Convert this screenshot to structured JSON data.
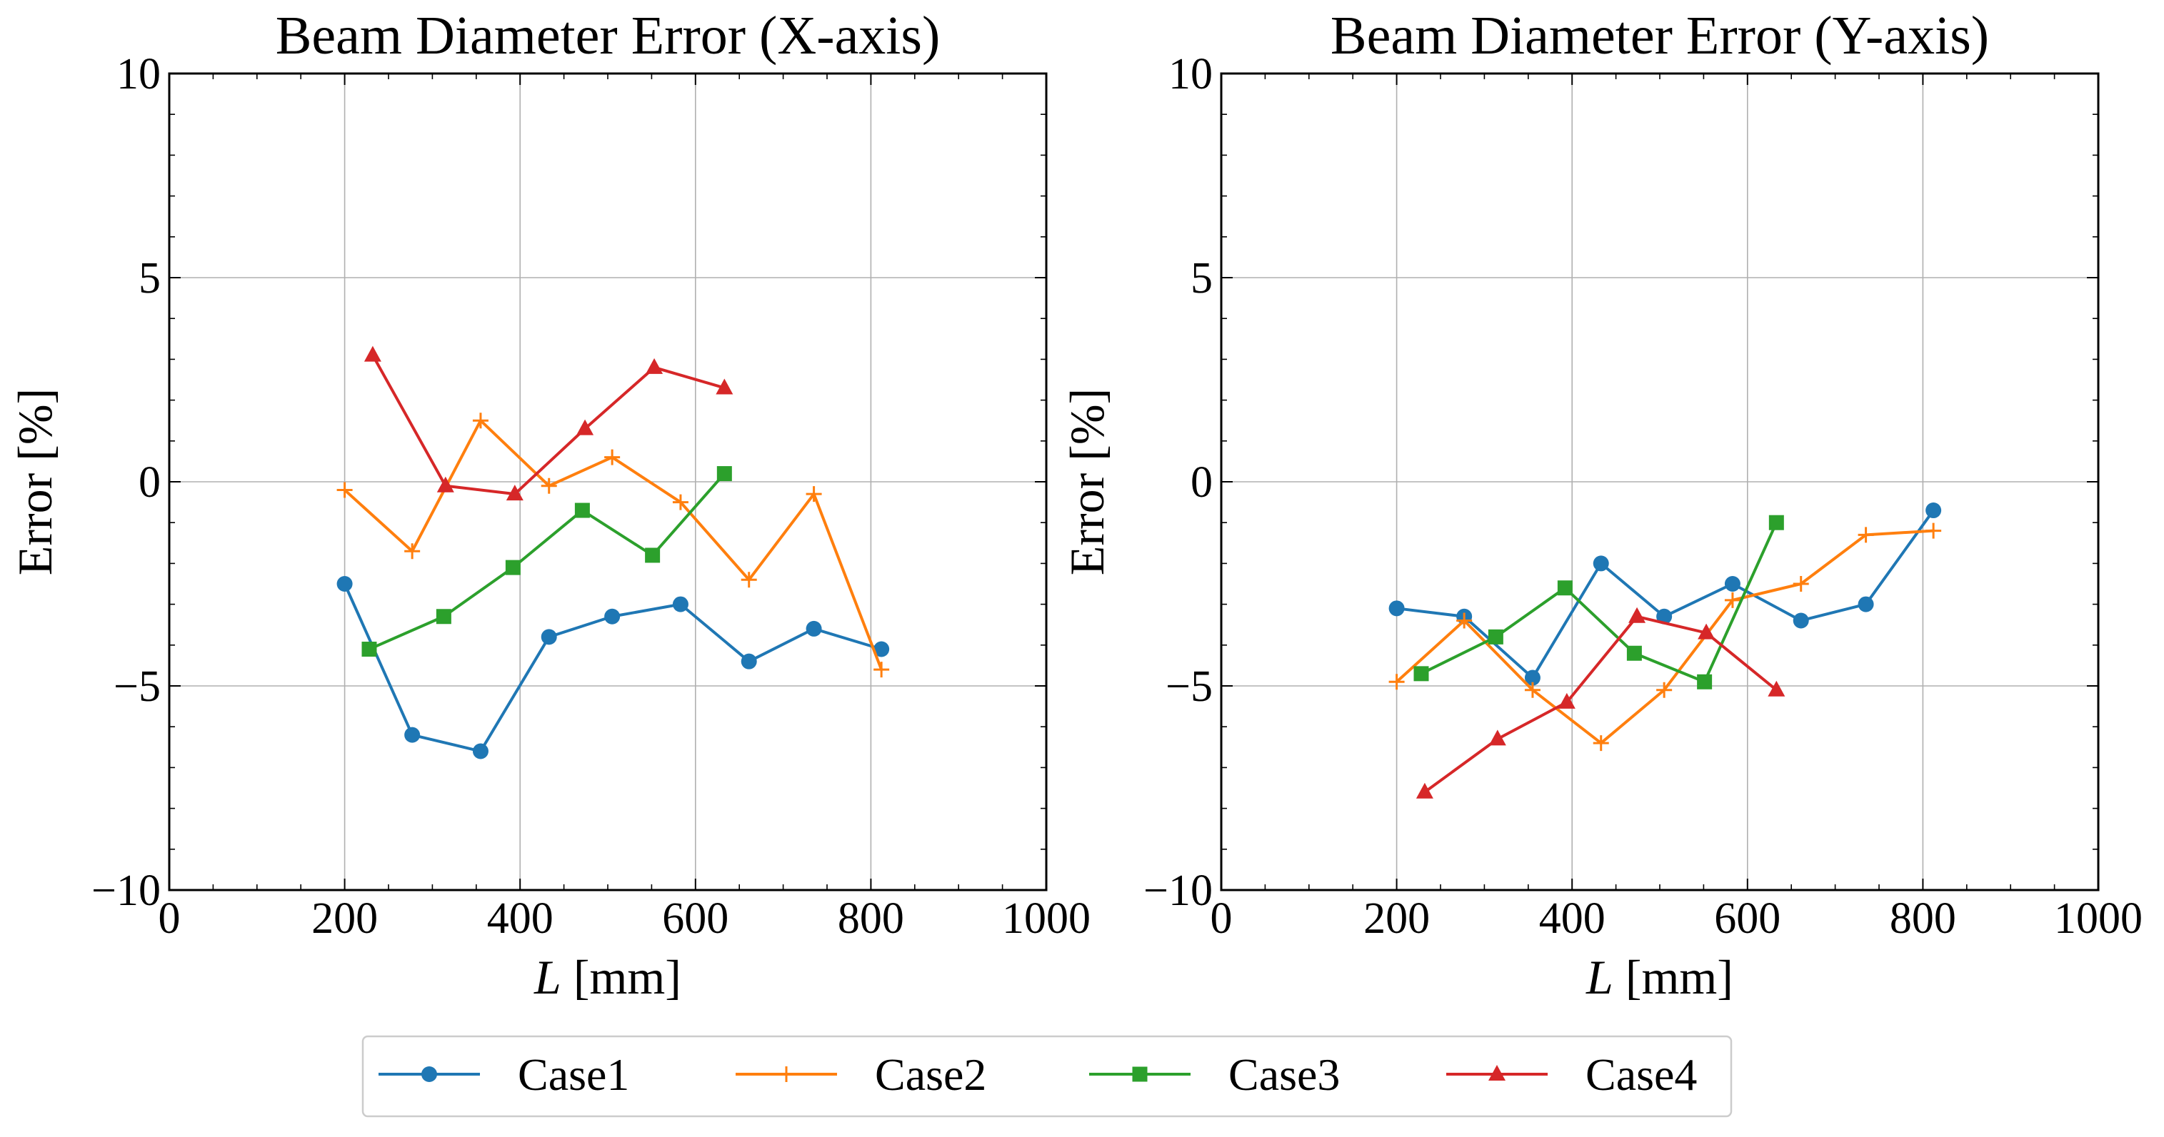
{
  "chart_data": [
    {
      "type": "line",
      "title": "Beam Diameter Error (X-axis)",
      "xlabel_var": "L",
      "xlabel_unit": " [mm]",
      "ylabel": "Error [%]",
      "xlim": [
        0,
        1000
      ],
      "ylim": [
        -10,
        10
      ],
      "xticks": [
        0,
        200,
        400,
        600,
        800,
        1000
      ],
      "yticks": [
        -10,
        -5,
        0,
        5,
        10
      ],
      "xtick_labels": [
        "0",
        "200",
        "400",
        "600",
        "800",
        "1000"
      ],
      "ytick_labels": [
        "−10",
        "−5",
        "0",
        "5",
        "10"
      ],
      "grid": true,
      "series": [
        {
          "name": "Case1",
          "color": "#1f77b4",
          "marker": "circle",
          "x": [
            200,
            277,
            355,
            433,
            505,
            583,
            661,
            735,
            812
          ],
          "y": [
            -2.5,
            -6.2,
            -6.6,
            -3.8,
            -3.3,
            -3.0,
            -4.4,
            -3.6,
            -4.1
          ]
        },
        {
          "name": "Case2",
          "color": "#ff7f0e",
          "marker": "plus",
          "x": [
            200,
            277,
            355,
            433,
            505,
            583,
            661,
            735,
            812
          ],
          "y": [
            -0.2,
            -1.7,
            1.5,
            -0.1,
            0.6,
            -0.5,
            -2.4,
            -0.3,
            -4.6
          ]
        },
        {
          "name": "Case3",
          "color": "#2ca02c",
          "marker": "square",
          "x": [
            228,
            313,
            392,
            471,
            551,
            633
          ],
          "y": [
            -4.1,
            -3.3,
            -2.1,
            -0.7,
            -1.8,
            0.2
          ]
        },
        {
          "name": "Case4",
          "color": "#d62728",
          "marker": "triangle",
          "x": [
            232,
            315,
            394,
            474,
            553,
            633
          ],
          "y": [
            3.1,
            -0.1,
            -0.3,
            1.3,
            2.8,
            2.3
          ]
        }
      ]
    },
    {
      "type": "line",
      "title": "Beam Diameter Error (Y-axis)",
      "xlabel_var": "L",
      "xlabel_unit": " [mm]",
      "ylabel": "Error [%]",
      "xlim": [
        0,
        1000
      ],
      "ylim": [
        -10,
        10
      ],
      "xticks": [
        0,
        200,
        400,
        600,
        800,
        1000
      ],
      "yticks": [
        -10,
        -5,
        0,
        5,
        10
      ],
      "xtick_labels": [
        "0",
        "200",
        "400",
        "600",
        "800",
        "1000"
      ],
      "ytick_labels": [
        "−10",
        "−5",
        "0",
        "5",
        "10"
      ],
      "grid": true,
      "series": [
        {
          "name": "Case1",
          "color": "#1f77b4",
          "marker": "circle",
          "x": [
            200,
            277,
            355,
            433,
            505,
            583,
            661,
            735,
            812
          ],
          "y": [
            -3.1,
            -3.3,
            -4.8,
            -2.0,
            -3.3,
            -2.5,
            -3.4,
            -3.0,
            -0.7
          ]
        },
        {
          "name": "Case2",
          "color": "#ff7f0e",
          "marker": "plus",
          "x": [
            200,
            277,
            355,
            433,
            505,
            583,
            661,
            735,
            812
          ],
          "y": [
            -4.9,
            -3.4,
            -5.1,
            -6.4,
            -5.1,
            -2.9,
            -2.5,
            -1.3,
            -1.2
          ]
        },
        {
          "name": "Case3",
          "color": "#2ca02c",
          "marker": "square",
          "x": [
            228,
            313,
            392,
            471,
            551,
            633
          ],
          "y": [
            -4.7,
            -3.8,
            -2.6,
            -4.2,
            -4.9,
            -1.0
          ]
        },
        {
          "name": "Case4",
          "color": "#d62728",
          "marker": "triangle",
          "x": [
            232,
            315,
            394,
            474,
            553,
            633
          ],
          "y": [
            -7.6,
            -6.3,
            -5.4,
            -3.3,
            -3.7,
            -5.1
          ]
        }
      ]
    }
  ],
  "legend": {
    "placement": "bottom-center",
    "entries": [
      "Case1",
      "Case2",
      "Case3",
      "Case4"
    ]
  }
}
